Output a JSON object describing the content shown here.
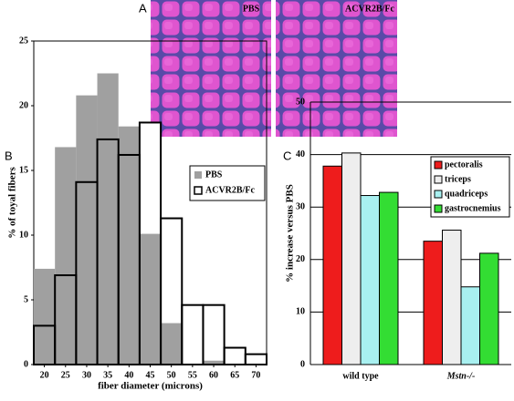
{
  "micrographs": {
    "panel_label": "A",
    "image_labels": [
      "PBS",
      "ACVR2B/Fc"
    ]
  },
  "chart_data": [
    {
      "type": "histogram",
      "panel_label": "B",
      "xlabel": "fiber diameter (microns)",
      "ylabel": "% of toyal fibers",
      "bins": [
        17.5,
        22.5,
        27.5,
        32.5,
        37.5,
        42.5,
        47.5,
        52.5,
        57.5,
        62.5,
        67.5,
        72.5
      ],
      "series": [
        {
          "name": "PBS",
          "color": "#a0a0a0",
          "values": [
            7.4,
            16.8,
            20.8,
            22.5,
            18.4,
            10.1,
            3.2,
            0,
            0.3,
            0,
            0
          ]
        },
        {
          "name": "ACVR2B/Fc",
          "color": "#000000",
          "values": [
            3.0,
            6.9,
            14.1,
            17.4,
            16.2,
            18.7,
            11.3,
            4.6,
            4.6,
            1.3,
            0.8
          ]
        }
      ],
      "xlim": [
        17.5,
        72.5
      ],
      "xticks": [
        20,
        25,
        30,
        35,
        40,
        45,
        50,
        55,
        60,
        65,
        70
      ],
      "ylim": [
        0,
        25
      ],
      "yticks": [
        0,
        5,
        10,
        15,
        20,
        25
      ],
      "legend": "upper right"
    },
    {
      "type": "bar",
      "panel_label": "C",
      "ylabel": "% increase versus PBS",
      "categories": [
        "wild type",
        "Mstn-/-"
      ],
      "series": [
        {
          "name": "pectoralis",
          "color": "#ee1c1c",
          "values": [
            37.8,
            23.5
          ]
        },
        {
          "name": "triceps",
          "color": "#eeeeee",
          "values": [
            40.3,
            25.6
          ]
        },
        {
          "name": "quadriceps",
          "color": "#a8f0f0",
          "values": [
            32.2,
            14.8
          ]
        },
        {
          "name": "gastrocnemius",
          "color": "#33dd33",
          "values": [
            32.8,
            21.2
          ]
        }
      ],
      "ylim": [
        0,
        50
      ],
      "yticks": [
        0,
        10,
        20,
        30,
        40,
        50
      ],
      "grid": true,
      "legend": "upper right"
    }
  ]
}
